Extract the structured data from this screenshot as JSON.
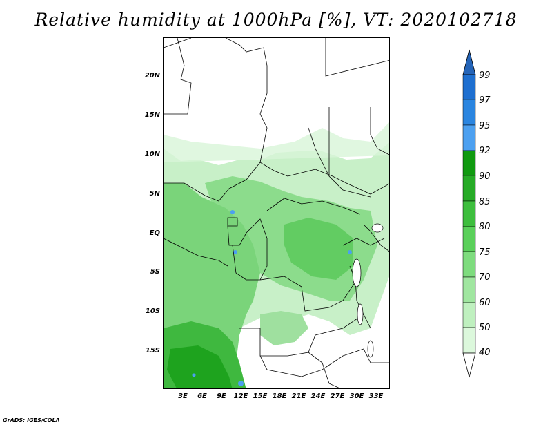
{
  "title": "Relative humidity at 1000hPa [%], VT: 2020102718",
  "footer": "GrADS: IGES/COLA",
  "map": {
    "lat_labels": [
      "20N",
      "15N",
      "10N",
      "5N",
      "EQ",
      "5S",
      "10S",
      "15S"
    ],
    "lon_labels": [
      "3E",
      "6E",
      "9E",
      "12E",
      "15E",
      "18E",
      "21E",
      "24E",
      "27E",
      "30E",
      "33E"
    ]
  },
  "colorbar": {
    "levels": [
      "99",
      "97",
      "95",
      "92",
      "90",
      "85",
      "80",
      "75",
      "70",
      "60",
      "50",
      "40"
    ],
    "colors": [
      "#1e6fd0",
      "#2a85e0",
      "#4ca0f0",
      "#109a10",
      "#26ab26",
      "#3dbe3d",
      "#5ad05a",
      "#7edc7e",
      "#a0e6a0",
      "#bff0bf",
      "#dcf8dc",
      "#f4fff4"
    ],
    "top_arrow_color": "#2464b8",
    "bottom_arrow_color": "#ffffff"
  }
}
